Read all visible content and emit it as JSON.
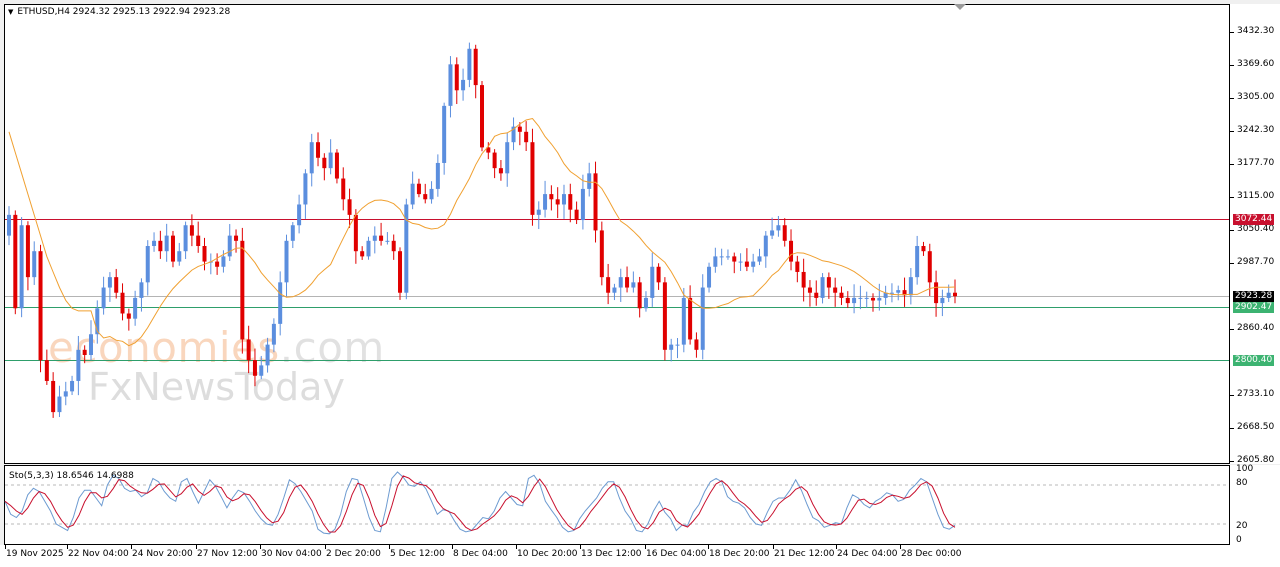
{
  "chart_data": {
    "type": "candlestick",
    "title": "ETHUSD,H4",
    "symbol": "ETHUSD",
    "timeframe": "H4",
    "ohlc_header": {
      "open": 2924.32,
      "high": 2925.13,
      "low": 2922.94,
      "close": 2923.28
    },
    "ylim": [
      2605.8,
      3432.3
    ],
    "y_ticks": [
      3432.3,
      3369.6,
      3305.0,
      3242.3,
      3177.7,
      3115.0,
      3050.4,
      2987.7,
      2860.4,
      2733.1,
      2668.5,
      2605.8
    ],
    "x_ticks": [
      "19 Nov 2025",
      "22 Nov 04:00",
      "24 Nov 20:00",
      "27 Nov 12:00",
      "30 Nov 04:00",
      "2 Dec 20:00",
      "5 Dec 12:00",
      "8 Dec 04:00",
      "10 Dec 20:00",
      "13 Dec 12:00",
      "16 Dec 04:00",
      "18 Dec 20:00",
      "21 Dec 12:00",
      "24 Dec 04:00",
      "28 Dec 00:00"
    ],
    "horizontal_lines": [
      {
        "label": "3072.44",
        "value": 3072.44,
        "color": "#c8102e"
      },
      {
        "label": "2923.28",
        "value": 2923.28,
        "color": "#b4b4b4",
        "tag_color": "#000000",
        "kind": "current-price"
      },
      {
        "label": "2902.47",
        "value": 2902.47,
        "color": "#2e9e6b",
        "tag_color": "#3cb371"
      },
      {
        "label": "2800.40",
        "value": 2800.4,
        "color": "#2e9e6b",
        "tag_color": "#3cb371"
      }
    ],
    "moving_average": {
      "color": "#f0a030",
      "description": "orange moving average"
    },
    "candle_colors": {
      "bull": "#5b8ede",
      "bear": "#e00000"
    },
    "candles_close_path": [
      3080,
      2900,
      3060,
      2960,
      3010,
      2800,
      2760,
      2700,
      2730,
      2740,
      2760,
      2820,
      2810,
      2850,
      2900,
      2940,
      2960,
      2930,
      2890,
      2880,
      2920,
      2950,
      3020,
      3030,
      3010,
      3040,
      2990,
      3010,
      3060,
      3040,
      3020,
      2990,
      2990,
      2980,
      3000,
      3040,
      3030,
      2840,
      2800,
      2770,
      2790,
      2830,
      2870,
      2950,
      3030,
      3060,
      3100,
      3160,
      3220,
      3190,
      3170,
      3200,
      3150,
      3110,
      3080,
      3010,
      3000,
      3030,
      3040,
      3030,
      3030,
      3010,
      2930,
      3100,
      3140,
      3120,
      3110,
      3130,
      3180,
      3290,
      3370,
      3320,
      3340,
      3400,
      3330,
      3210,
      3200,
      3170,
      3160,
      3220,
      3250,
      3240,
      3220,
      3080,
      3090,
      3120,
      3110,
      3100,
      3120,
      3090,
      3070,
      3130,
      3160,
      3050,
      2960,
      2930,
      2940,
      2960,
      2940,
      2950,
      2900,
      2920,
      2980,
      2950,
      2820,
      2830,
      2830,
      2920,
      2840,
      2820,
      2940,
      2980,
      3000,
      3000,
      3000,
      2990,
      2990,
      2980,
      2990,
      3000,
      3040,
      3050,
      3060,
      3030,
      2990,
      2970,
      2940,
      2930,
      2920,
      2960,
      2940,
      2930,
      2920,
      2910,
      2920,
      2920,
      2920,
      2915,
      2920,
      2930,
      2930,
      2935,
      2925,
      2960,
      3020,
      3010,
      2950,
      2910,
      2920,
      2930,
      2923.28
    ],
    "subchart": {
      "type": "line",
      "title": "Sto(5,3,3)",
      "main_value": 18.6546,
      "signal_value": 14.6988,
      "ylim": [
        0,
        100
      ],
      "y_ticks": [
        100,
        80,
        20,
        0
      ],
      "levels": [
        80,
        20
      ],
      "series": [
        {
          "name": "%K",
          "color": "#6d9bd1"
        },
        {
          "name": "%D",
          "color": "#c8102e"
        }
      ],
      "k_values": [
        55,
        35,
        30,
        40,
        65,
        75,
        70,
        55,
        40,
        20,
        15,
        10,
        30,
        60,
        72,
        72,
        60,
        48,
        80,
        95,
        90,
        75,
        70,
        72,
        62,
        68,
        90,
        85,
        70,
        60,
        55,
        85,
        90,
        70,
        52,
        70,
        88,
        78,
        62,
        45,
        60,
        72,
        68,
        55,
        40,
        28,
        20,
        18,
        35,
        60,
        88,
        82,
        70,
        55,
        40,
        12,
        6,
        5,
        12,
        35,
        70,
        90,
        88,
        60,
        30,
        10,
        8,
        45,
        90,
        100,
        92,
        80,
        78,
        85,
        74,
        55,
        35,
        42,
        40,
        25,
        12,
        8,
        10,
        20,
        30,
        28,
        40,
        60,
        70,
        60,
        50,
        48,
        90,
        95,
        82,
        55,
        42,
        30,
        15,
        8,
        10,
        28,
        40,
        50,
        60,
        75,
        85,
        85,
        60,
        40,
        28,
        10,
        8,
        20,
        40,
        55,
        38,
        28,
        10,
        18,
        18,
        38,
        50,
        70,
        85,
        90,
        85,
        62,
        55,
        52,
        45,
        30,
        20,
        18,
        38,
        55,
        60,
        60,
        72,
        88,
        72,
        50,
        30,
        25,
        15,
        18,
        22,
        20,
        45,
        65,
        60,
        50,
        45,
        55,
        60,
        68,
        65,
        55,
        58,
        72,
        80,
        90,
        85,
        60,
        35,
        15,
        12,
        18
      ]
    }
  },
  "header": {
    "symbol_line": "ETHUSD,H4  2924.32 2925.13 2922.94 2923.28"
  },
  "indicator": {
    "label": "Sto(5,3,3) 18.6546 14.6988"
  },
  "watermark": {
    "line1_a": "economies",
    "line1_b": ".com",
    "line2": "FxNewsToday"
  },
  "price_axis": {
    "labels": [
      "3432.30",
      "3369.60",
      "3305.00",
      "3242.30",
      "3177.70",
      "3115.00",
      "3050.40",
      "2987.70",
      "2860.40",
      "2733.10",
      "2668.50",
      "2605.80"
    ],
    "tags": [
      "3072.44",
      "2923.28",
      "2902.47",
      "2800.40"
    ]
  },
  "sub_axis": {
    "labels": [
      "100",
      "80",
      "20",
      "0"
    ]
  },
  "time_axis": {
    "labels": [
      "19 Nov 2025",
      "22 Nov 04:00",
      "24 Nov 20:00",
      "27 Nov 12:00",
      "30 Nov 04:00",
      "2 Dec 20:00",
      "5 Dec 12:00",
      "8 Dec 04:00",
      "10 Dec 20:00",
      "13 Dec 12:00",
      "16 Dec 04:00",
      "18 Dec 20:00",
      "21 Dec 12:00",
      "24 Dec 04:00",
      "28 Dec 00:00"
    ]
  }
}
